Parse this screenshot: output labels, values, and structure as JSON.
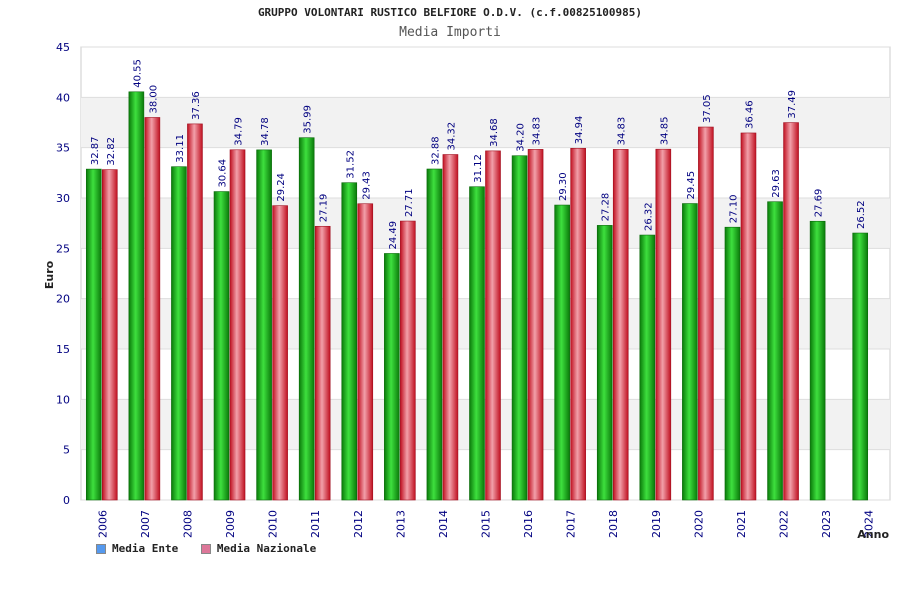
{
  "chart_data": {
    "type": "bar",
    "title": "GRUPPO VOLONTARI RUSTICO BELFIORE O.D.V. (c.f.00825100985)",
    "subtitle": "Media Importi",
    "xlabel": "Anno",
    "ylabel": "Euro",
    "ylim": [
      0,
      45
    ],
    "ytick_step": 5,
    "categories": [
      "2006",
      "2007",
      "2008",
      "2009",
      "2010",
      "2011",
      "2012",
      "2013",
      "2014",
      "2015",
      "2016",
      "2017",
      "2018",
      "2019",
      "2020",
      "2021",
      "2022",
      "2023",
      "2024"
    ],
    "series": [
      {
        "name": "Media Ente",
        "color": "#22aa22",
        "legend_color": "#5599ee",
        "values": [
          32.87,
          40.55,
          33.11,
          30.64,
          34.78,
          35.99,
          31.52,
          24.49,
          32.88,
          31.12,
          34.2,
          29.3,
          27.28,
          26.32,
          29.45,
          27.1,
          29.63,
          27.69,
          26.52
        ]
      },
      {
        "name": "Media Nazionale",
        "color": "#dd3344",
        "legend_color": "#dd7799",
        "values": [
          32.82,
          38.0,
          37.36,
          34.79,
          29.24,
          27.19,
          29.43,
          27.71,
          34.32,
          34.68,
          34.83,
          34.94,
          34.83,
          34.85,
          37.05,
          36.46,
          37.49,
          null,
          null
        ]
      }
    ]
  }
}
